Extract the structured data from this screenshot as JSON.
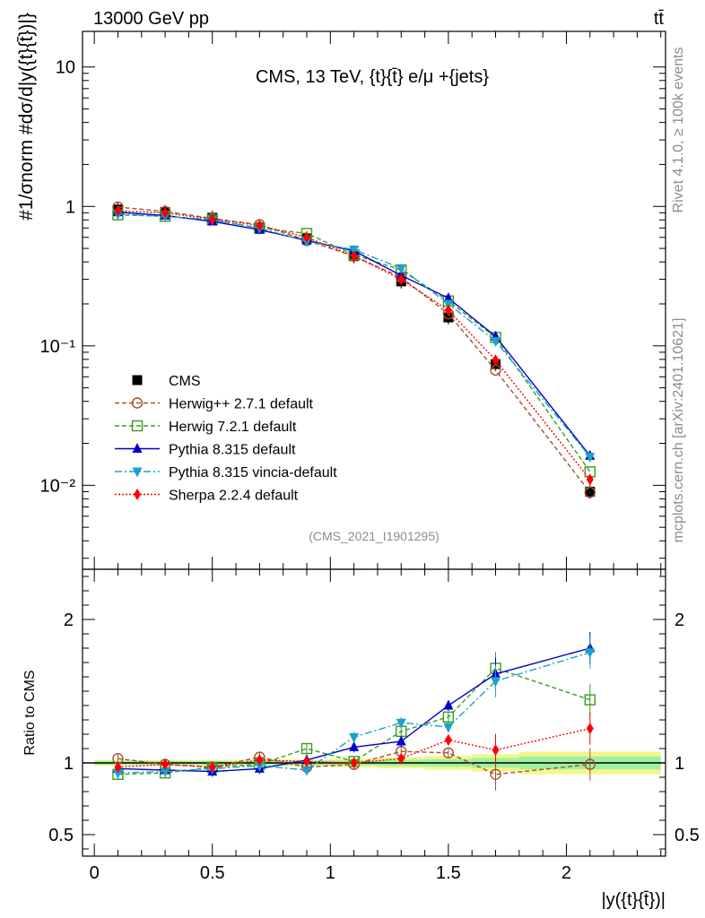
{
  "header": {
    "energy_label": "13000 GeV pp",
    "process_label": "tt̄"
  },
  "side_labels": {
    "rivet": "Rivet 4.1.0, ≥ 100k events",
    "mcplots": "mcplots.cern.ch [arXiv:2401.10621]"
  },
  "colors": {
    "CMS": "#000000",
    "Herwig++ 2.7.1 default": "#a0522d",
    "Herwig 7.2.1 default": "#3c9b1e",
    "Pythia 8.315 default": "#0000cd",
    "Pythia 8.315 vincia-default": "#1aa3c9",
    "Sherpa 2.2.4 default": "#ff0000",
    "band_inner": "#9ef29e",
    "band_outer": "#f5f58c"
  },
  "chart_data": [
    {
      "type": "line",
      "panel": "main",
      "title": "CMS, 13 TeV, {t}{t̄} e/μ +{jets}",
      "ylabel": "#1/σnorm #dσ/d|y({t}{t̄})|}",
      "yscale": "log",
      "ylim": [
        0.0025,
        18
      ],
      "xlim": [
        -0.05,
        2.42
      ],
      "yticks": [
        "10⁻²",
        "10⁻¹",
        "1",
        "10"
      ],
      "watermark": "(CMS_2021_I1901295)",
      "x": [
        0.1,
        0.3,
        0.5,
        0.7,
        0.9,
        1.1,
        1.3,
        1.5,
        1.7,
        2.1
      ],
      "series": [
        {
          "name": "CMS",
          "marker": "square",
          "values": [
            0.95,
            0.91,
            0.83,
            0.71,
            0.59,
            0.44,
            0.29,
            0.16,
            0.074,
            0.009
          ]
        },
        {
          "name": "Herwig++ 2.7.1 default",
          "marker": "circle-open",
          "dash": "5,3",
          "values": [
            0.99,
            0.92,
            0.82,
            0.74,
            0.57,
            0.44,
            0.31,
            0.17,
            0.067,
            0.0089
          ]
        },
        {
          "name": "Herwig 7.2.1 default",
          "marker": "square-open",
          "dash": "5,3",
          "values": [
            0.87,
            0.85,
            0.8,
            0.7,
            0.64,
            0.45,
            0.35,
            0.21,
            0.115,
            0.0125
          ]
        },
        {
          "name": "Pythia 8.315 default",
          "marker": "triangle-up",
          "dash": "",
          "values": [
            0.91,
            0.86,
            0.78,
            0.68,
            0.57,
            0.48,
            0.32,
            0.22,
            0.117,
            0.0163
          ]
        },
        {
          "name": "Pythia 8.315 vincia-default",
          "marker": "triangle-down",
          "dash": "8,3,2,3",
          "values": [
            0.88,
            0.85,
            0.8,
            0.7,
            0.56,
            0.49,
            0.36,
            0.2,
            0.108,
            0.016
          ]
        },
        {
          "name": "Sherpa 2.2.4 default",
          "marker": "diamond",
          "dash": "2,2",
          "values": [
            0.93,
            0.9,
            0.81,
            0.73,
            0.6,
            0.44,
            0.3,
            0.18,
            0.079,
            0.011
          ]
        }
      ]
    },
    {
      "type": "line",
      "panel": "ratio",
      "ylabel": "Ratio to CMS",
      "xlabel": "|y({t}{t̄})|",
      "ylim": [
        0.35,
        2.35
      ],
      "xlim": [
        -0.05,
        2.42
      ],
      "xticks": [
        "0",
        "0.5",
        "1",
        "1.5",
        "2"
      ],
      "yticks": [
        "0.5",
        "1",
        "2"
      ],
      "x": [
        0.1,
        0.3,
        0.5,
        0.7,
        0.9,
        1.1,
        1.3,
        1.5,
        1.7,
        2.1
      ],
      "band_edges": [
        0.0,
        0.2,
        0.4,
        0.6,
        0.8,
        1.0,
        1.2,
        1.4,
        1.6,
        1.8,
        2.4
      ],
      "band_inner": [
        0.014,
        0.013,
        0.013,
        0.014,
        0.016,
        0.018,
        0.022,
        0.027,
        0.034,
        0.045
      ],
      "band_outer": [
        0.02,
        0.02,
        0.02,
        0.022,
        0.025,
        0.03,
        0.038,
        0.048,
        0.06,
        0.078
      ],
      "series": [
        {
          "name": "Herwig++ 2.7.1 default",
          "values": [
            1.03,
            0.99,
            0.97,
            1.04,
            0.97,
            0.99,
            1.08,
            1.07,
            0.92,
            0.99
          ]
        },
        {
          "name": "Herwig 7.2.1 default",
          "values": [
            0.92,
            0.93,
            0.97,
            0.99,
            1.1,
            1.01,
            1.22,
            1.32,
            1.66,
            1.44
          ]
        },
        {
          "name": "Pythia 8.315 default",
          "values": [
            0.96,
            0.95,
            0.94,
            0.96,
            1.02,
            1.11,
            1.15,
            1.4,
            1.62,
            1.8
          ]
        },
        {
          "name": "Pythia 8.315 vincia-default",
          "values": [
            0.93,
            0.94,
            0.96,
            0.98,
            0.95,
            1.18,
            1.28,
            1.25,
            1.57,
            1.77
          ]
        },
        {
          "name": "Sherpa 2.2.4 default",
          "values": [
            0.97,
            0.99,
            0.97,
            1.02,
            1.01,
            1.0,
            1.03,
            1.16,
            1.09,
            1.24
          ]
        }
      ]
    }
  ]
}
